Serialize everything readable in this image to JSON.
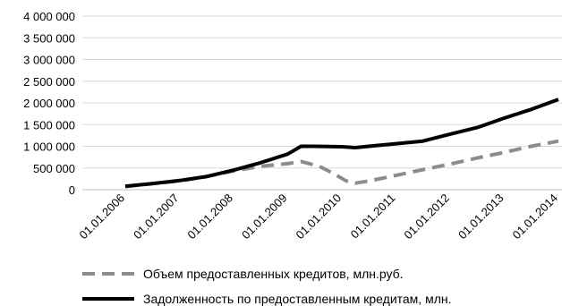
{
  "chart_data": {
    "type": "line",
    "title": "",
    "xlabel": "",
    "ylabel": "",
    "ylim": [
      0,
      4000000
    ],
    "yticks": [
      "4 000 000",
      "3 500 000",
      "3 000 000",
      "2 500 000",
      "2 000 000",
      "1 500 000",
      "1 000 000",
      "500 000",
      "0"
    ],
    "ytick_values": [
      4000000,
      3500000,
      3000000,
      2500000,
      2000000,
      1500000,
      1000000,
      500000,
      0
    ],
    "xticks": [
      "01.01.2006",
      "01.01.2007",
      "01.01.2008",
      "01.01.2009",
      "01.01.2010",
      "01.01.2011",
      "01.01.2012",
      "01.01.2013",
      "01.01.2014"
    ],
    "grid": "horizontal",
    "legend_position": "bottom",
    "series": [
      {
        "name": "Объем предоставленных кредитов, млн.руб.",
        "style": "dashed",
        "color": "#8c8c8c",
        "points": [
          [
            "2006-01-01",
            70000
          ],
          [
            "2006-07-01",
            140000
          ],
          [
            "2007-01-01",
            200000
          ],
          [
            "2007-07-01",
            300000
          ],
          [
            "2008-01-01",
            430000
          ],
          [
            "2008-07-01",
            540000
          ],
          [
            "2009-01-01",
            600000
          ],
          [
            "2009-04-01",
            650000
          ],
          [
            "2009-08-01",
            540000
          ],
          [
            "2009-11-01",
            380000
          ],
          [
            "2010-02-01",
            200000
          ],
          [
            "2010-04-01",
            150000
          ],
          [
            "2010-07-01",
            200000
          ],
          [
            "2011-01-01",
            330000
          ],
          [
            "2011-07-01",
            460000
          ],
          [
            "2012-01-01",
            590000
          ],
          [
            "2012-07-01",
            730000
          ],
          [
            "2013-01-01",
            860000
          ],
          [
            "2013-07-01",
            1000000
          ],
          [
            "2014-01-01",
            1120000
          ]
        ]
      },
      {
        "name": "Задолженность по предоставленным кредитам, млн.",
        "style": "solid",
        "color": "#000000",
        "points": [
          [
            "2006-01-01",
            80000
          ],
          [
            "2006-07-01",
            140000
          ],
          [
            "2007-01-01",
            210000
          ],
          [
            "2007-07-01",
            300000
          ],
          [
            "2008-01-01",
            450000
          ],
          [
            "2008-07-01",
            620000
          ],
          [
            "2009-01-01",
            820000
          ],
          [
            "2009-04-01",
            1000000
          ],
          [
            "2009-07-01",
            1000000
          ],
          [
            "2010-01-01",
            990000
          ],
          [
            "2010-04-01",
            970000
          ],
          [
            "2010-07-01",
            1000000
          ],
          [
            "2011-01-01",
            1060000
          ],
          [
            "2011-07-01",
            1120000
          ],
          [
            "2012-01-01",
            1280000
          ],
          [
            "2012-07-01",
            1430000
          ],
          [
            "2013-01-01",
            1650000
          ],
          [
            "2013-07-01",
            1850000
          ],
          [
            "2014-01-01",
            2080000
          ]
        ]
      }
    ],
    "x_axis_start": "2006-01-01",
    "x_axis_end": "2014-01-01"
  }
}
